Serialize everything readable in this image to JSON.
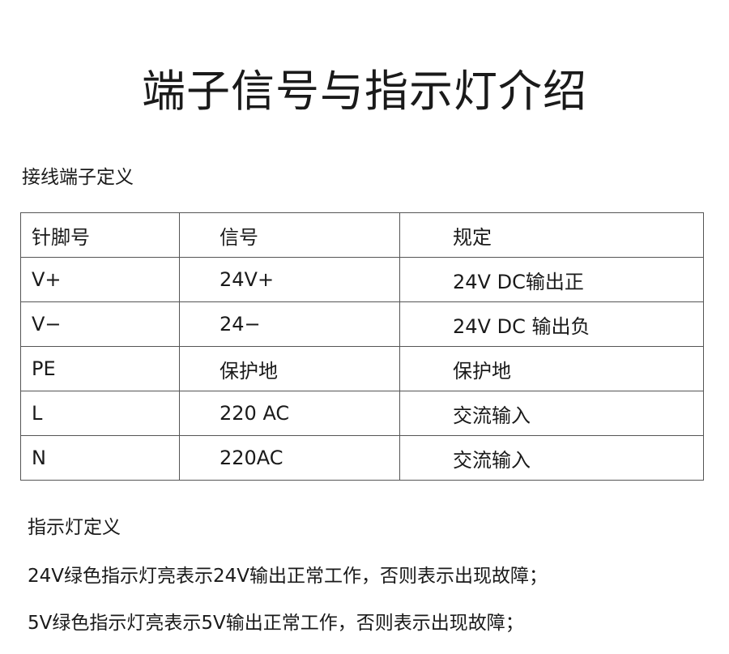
{
  "title": "端子信号与指示灯介绍",
  "terminal_section": {
    "heading": "接线端子定义",
    "columns": [
      "针脚号",
      "信号",
      "规定"
    ],
    "rows": [
      [
        "V+",
        "24V+",
        "24V DC输出正"
      ],
      [
        "V−",
        "24−",
        "24V DC 输出负"
      ],
      [
        "PE",
        "保护地",
        "保护地"
      ],
      [
        "L",
        "220 AC",
        "交流输入"
      ],
      [
        "N",
        "220AC",
        "交流输入"
      ]
    ]
  },
  "indicator_section": {
    "heading": "指示灯定义",
    "lines": [
      "24V绿色指示灯亮表示24V输出正常工作，否则表示出现故障；",
      "5V绿色指示灯亮表示5V输出正常工作，否则表示出现故障；"
    ]
  }
}
